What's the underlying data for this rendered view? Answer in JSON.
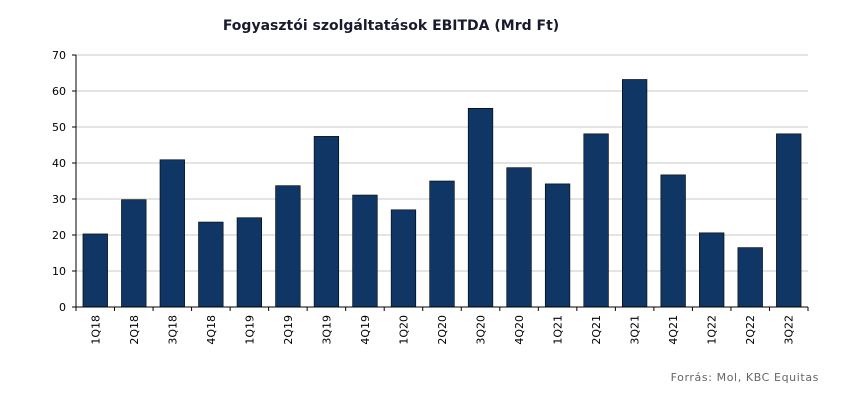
{
  "chart_data": {
    "type": "bar",
    "title": "Fogyasztói szolgáltatások EBITDA (Mrd Ft)",
    "categories": [
      "1Q18",
      "2Q18",
      "3Q18",
      "4Q18",
      "1Q19",
      "2Q19",
      "3Q19",
      "4Q19",
      "1Q20",
      "2Q20",
      "3Q20",
      "4Q20",
      "1Q21",
      "2Q21",
      "3Q21",
      "4Q21",
      "1Q22",
      "2Q22",
      "3Q22"
    ],
    "values": [
      20.3,
      29.8,
      40.9,
      23.6,
      24.8,
      33.7,
      47.4,
      31.1,
      27.0,
      35.0,
      55.2,
      38.7,
      34.2,
      48.1,
      63.2,
      36.7,
      20.6,
      16.5,
      48.1
    ],
    "ylim": [
      0,
      70
    ],
    "yticks": [
      0,
      10,
      20,
      30,
      40,
      50,
      60,
      70
    ],
    "grid": true,
    "bar_color": "#0f3664",
    "source": "Forrás: Mol, KBC Equitas"
  }
}
